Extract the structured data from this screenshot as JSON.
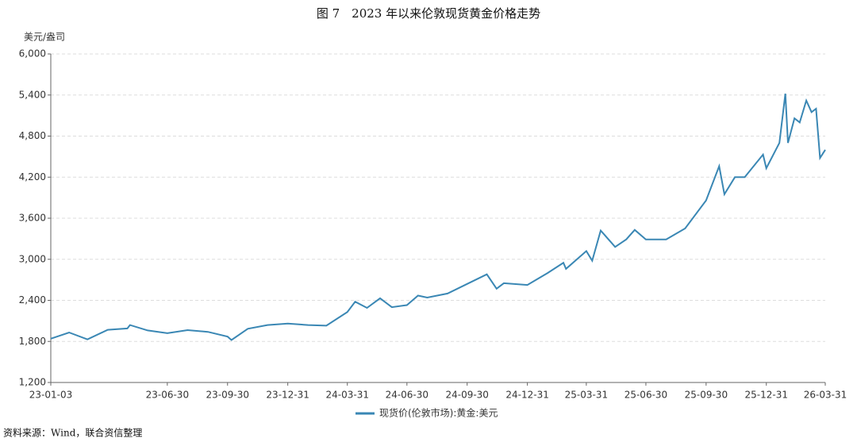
{
  "chart_data": {
    "type": "line",
    "title": "图 7　2023 年以来伦敦现货黄金价格走势",
    "y_label": "美元/盎司",
    "source": "资料来源：Wind，联合资信整理",
    "x": [
      "23-01-03",
      "23-01-31",
      "23-02-28",
      "23-03-31",
      "23-04-30",
      "23-05-04",
      "23-05-31",
      "23-06-30",
      "23-07-31",
      "23-08-31",
      "23-09-30",
      "23-10-06",
      "23-10-31",
      "23-11-30",
      "23-12-31",
      "24-01-31",
      "24-02-28",
      "24-03-31",
      "24-04-12",
      "24-04-30",
      "24-05-20",
      "24-06-07",
      "24-06-30",
      "24-07-17",
      "24-07-31",
      "24-08-31",
      "24-09-30",
      "24-10-30",
      "24-11-14",
      "24-11-25",
      "24-12-31",
      "25-01-31",
      "25-02-24",
      "25-02-28",
      "25-03-31",
      "25-04-09",
      "25-04-22",
      "25-05-14",
      "25-05-31",
      "25-06-13",
      "25-06-30",
      "25-07-31",
      "25-08-29",
      "25-09-30",
      "25-10-20",
      "25-10-28",
      "25-11-13",
      "25-11-28",
      "25-12-26",
      "25-12-31",
      "26-01-20",
      "26-01-29",
      "26-02-02",
      "26-02-12",
      "26-02-20",
      "26-03-02",
      "26-03-10",
      "26-03-17",
      "26-03-23",
      "26-03-31"
    ],
    "series": [
      {
        "name": "现货价(伦敦市场):黄金:美元",
        "color": "#3a87b4",
        "values": [
          1840,
          1930,
          1830,
          1970,
          1990,
          2040,
          1960,
          1920,
          1965,
          1940,
          1870,
          1820,
          1985,
          2040,
          2060,
          2040,
          2030,
          2230,
          2380,
          2290,
          2430,
          2300,
          2330,
          2470,
          2440,
          2500,
          2640,
          2780,
          2570,
          2650,
          2625,
          2800,
          2950,
          2860,
          3120,
          2980,
          3420,
          3180,
          3290,
          3430,
          3290,
          3290,
          3450,
          3860,
          4360,
          3950,
          4200,
          4200,
          4530,
          4330,
          4700,
          5420,
          4700,
          5060,
          5000,
          5320,
          5150,
          5200,
          4480,
          4600
        ]
      }
    ],
    "xlim": [
      "23-01-03",
      "26-03-31"
    ],
    "xticks": [
      "23-01-03",
      "23-06-30",
      "23-09-30",
      "23-12-31",
      "24-03-31",
      "24-06-30",
      "24-09-30",
      "24-12-31",
      "25-03-31",
      "25-06-30",
      "25-09-30",
      "25-12-31",
      "26-03-31"
    ],
    "ylim": [
      1200,
      6000
    ],
    "yticks": [
      {
        "value": 1200,
        "label": "1,200"
      },
      {
        "value": 1800,
        "label": "1,800"
      },
      {
        "value": 2400,
        "label": "2,400"
      },
      {
        "value": 3000,
        "label": "3,000"
      },
      {
        "value": 3600,
        "label": "3,600"
      },
      {
        "value": 4200,
        "label": "4,200"
      },
      {
        "value": 4800,
        "label": "4,800"
      },
      {
        "value": 5400,
        "label": "5,400"
      },
      {
        "value": 6000,
        "label": "6,000"
      }
    ],
    "grid": true
  }
}
